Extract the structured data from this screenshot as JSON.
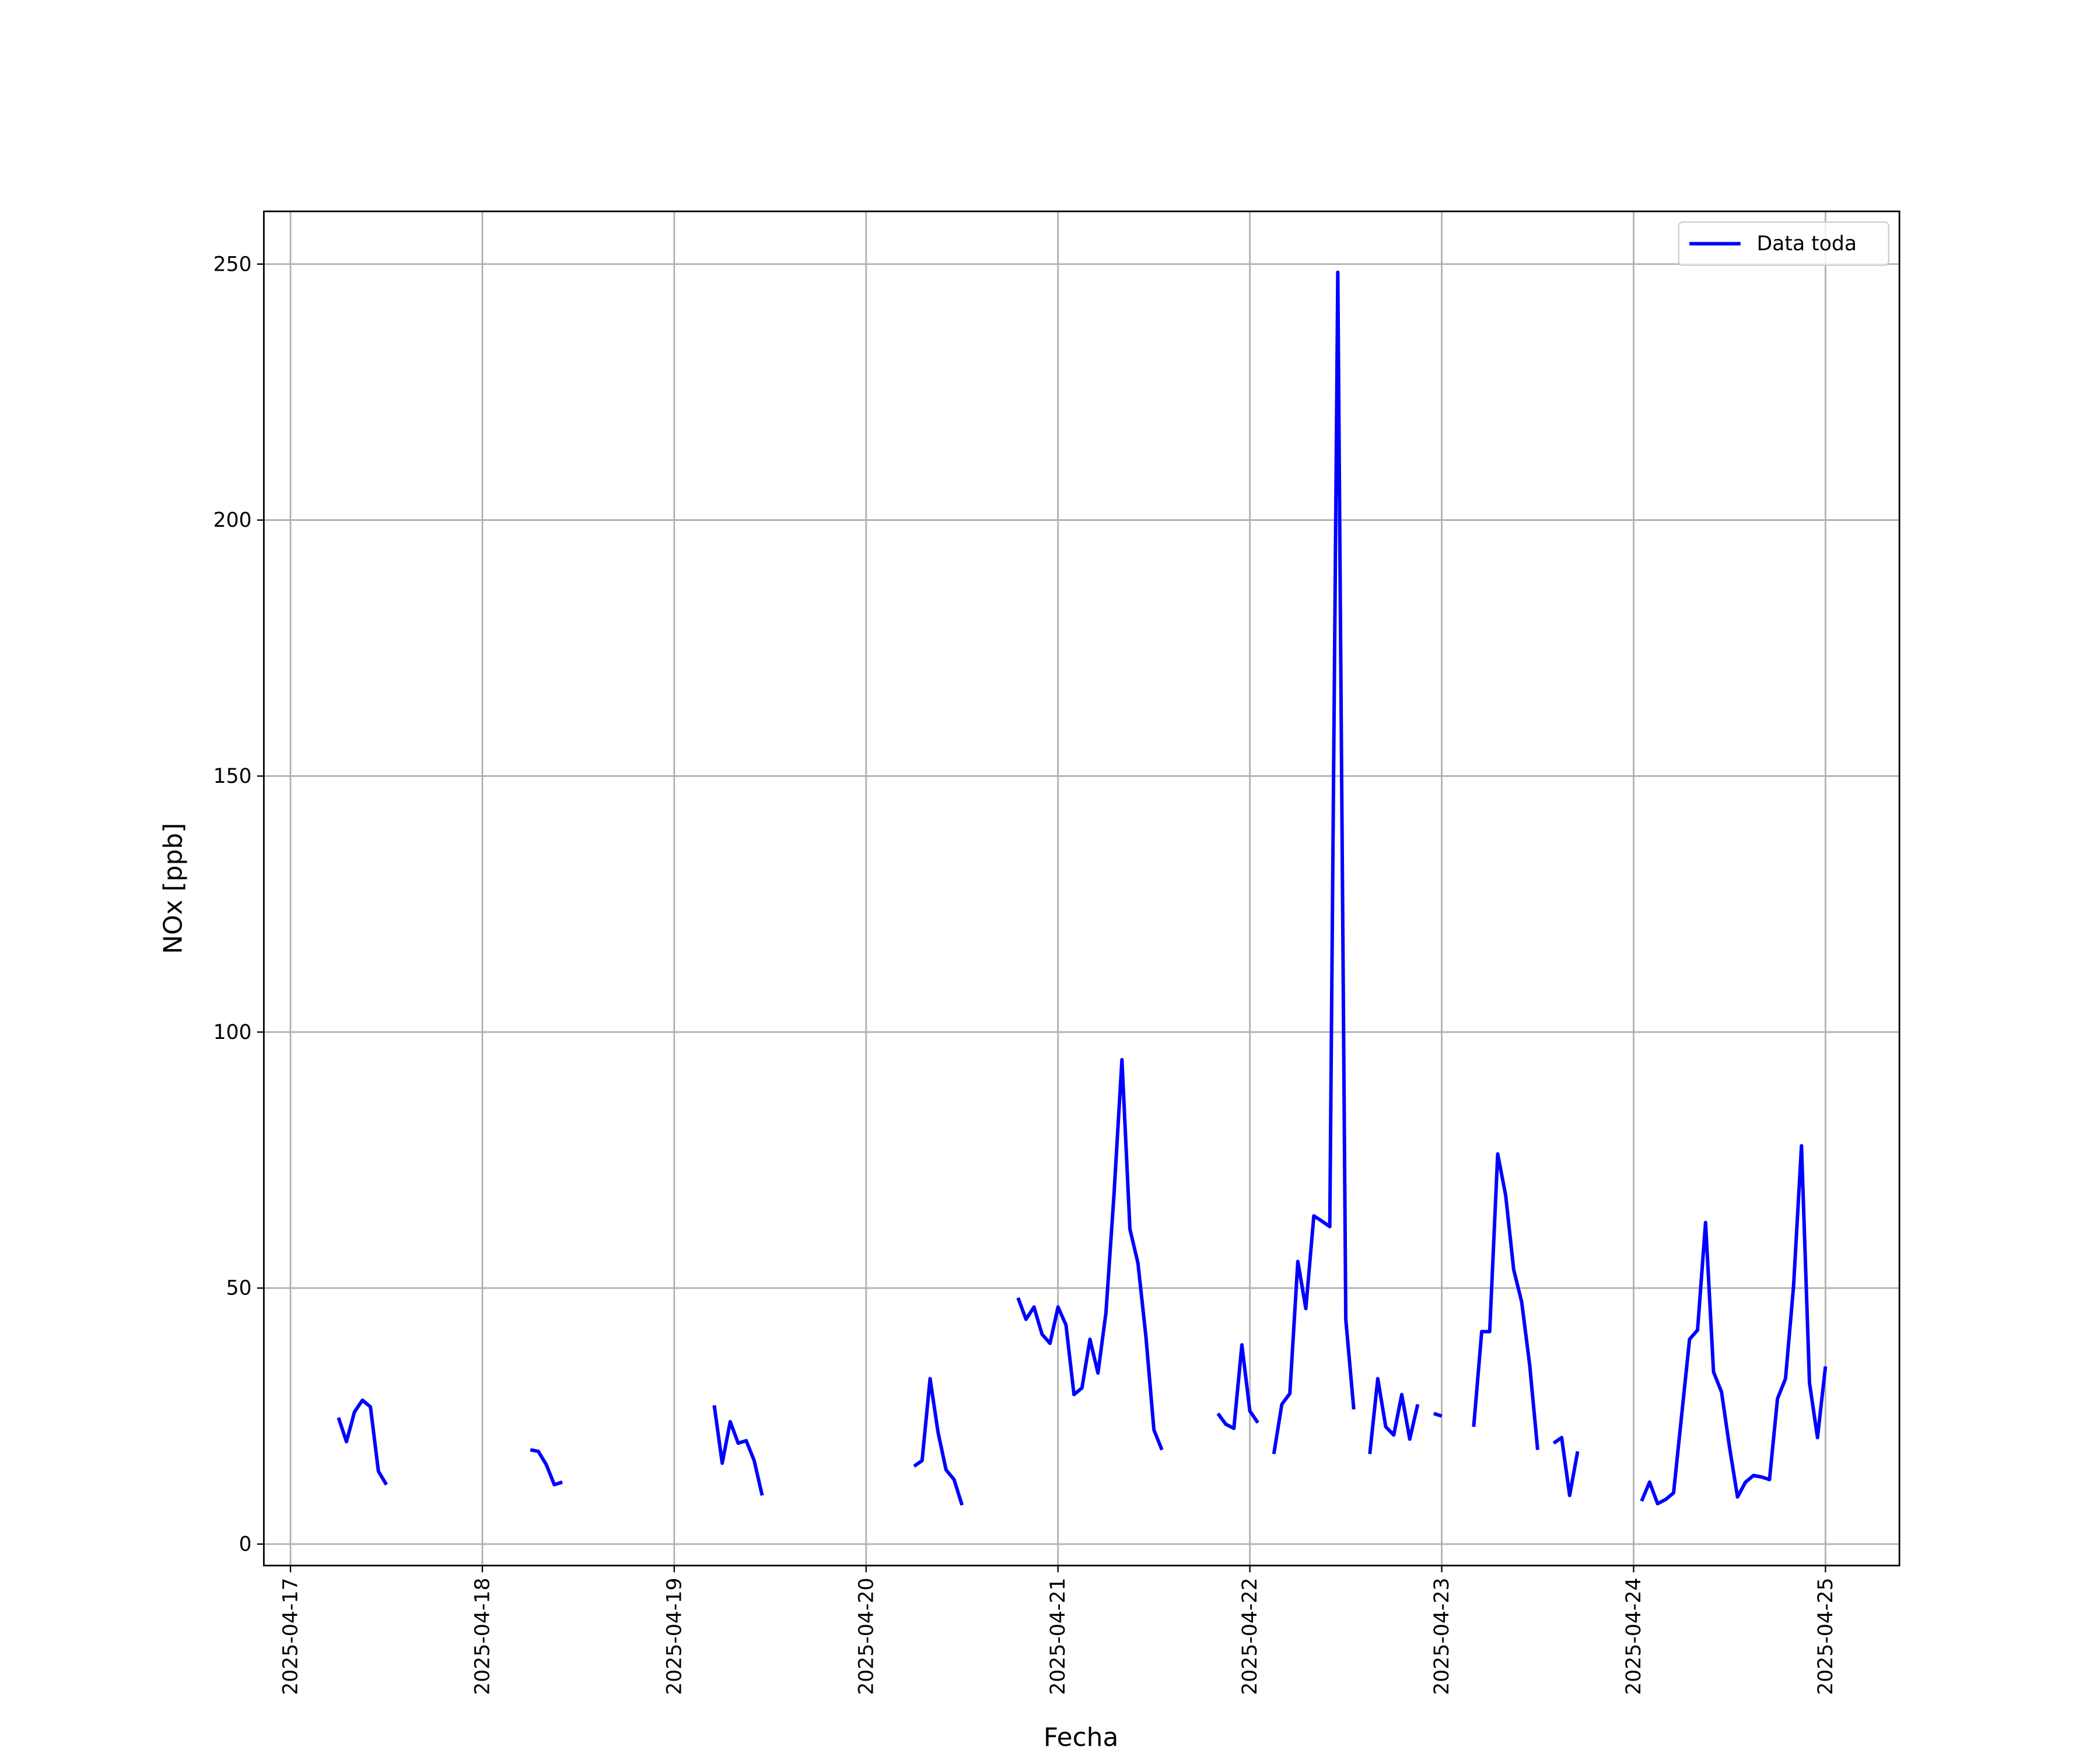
{
  "chart_data": {
    "type": "line",
    "xlabel": "Fecha",
    "ylabel": "NOx [ppb]",
    "x": [
      "2025-04-17 06:00",
      "2025-04-17 07:00",
      "2025-04-17 08:00",
      "2025-04-17 09:00",
      "2025-04-17 10:00",
      "2025-04-17 11:00",
      "2025-04-17 12:00",
      "2025-04-17 13:00",
      "2025-04-18 06:00",
      "2025-04-18 07:00",
      "2025-04-18 08:00",
      "2025-04-18 09:00",
      "2025-04-18 10:00",
      "2025-04-18 11:00",
      "2025-04-19 05:00",
      "2025-04-19 06:00",
      "2025-04-19 07:00",
      "2025-04-19 08:00",
      "2025-04-19 09:00",
      "2025-04-19 10:00",
      "2025-04-19 11:00",
      "2025-04-19 12:00",
      "2025-04-20 06:00",
      "2025-04-20 07:00",
      "2025-04-20 08:00",
      "2025-04-20 09:00",
      "2025-04-20 10:00",
      "2025-04-20 11:00",
      "2025-04-20 12:00",
      "2025-04-20 13:00",
      "2025-04-20 19:00",
      "2025-04-20 20:00",
      "2025-04-20 21:00",
      "2025-04-20 22:00",
      "2025-04-20 23:00",
      "2025-04-21 00:00",
      "2025-04-21 01:00",
      "2025-04-21 02:00",
      "2025-04-21 03:00",
      "2025-04-21 04:00",
      "2025-04-21 05:00",
      "2025-04-21 06:00",
      "2025-04-21 07:00",
      "2025-04-21 08:00",
      "2025-04-21 09:00",
      "2025-04-21 10:00",
      "2025-04-21 11:00",
      "2025-04-21 12:00",
      "2025-04-21 13:00",
      "2025-04-21 14:00",
      "2025-04-21 20:00",
      "2025-04-21 21:00",
      "2025-04-21 22:00",
      "2025-04-21 23:00",
      "2025-04-22 00:00",
      "2025-04-22 01:00",
      "2025-04-22 02:00",
      "2025-04-22 03:00",
      "2025-04-22 04:00",
      "2025-04-22 05:00",
      "2025-04-22 06:00",
      "2025-04-22 07:00",
      "2025-04-22 08:00",
      "2025-04-22 09:00",
      "2025-04-22 10:00",
      "2025-04-22 11:00",
      "2025-04-22 12:00",
      "2025-04-22 13:00",
      "2025-04-22 14:00",
      "2025-04-22 15:00",
      "2025-04-22 16:00",
      "2025-04-22 17:00",
      "2025-04-22 18:00",
      "2025-04-22 19:00",
      "2025-04-22 20:00",
      "2025-04-22 21:00",
      "2025-04-22 22:00",
      "2025-04-22 23:00",
      "2025-04-23 00:00",
      "2025-04-23 01:00",
      "2025-04-23 04:00",
      "2025-04-23 05:00",
      "2025-04-23 06:00",
      "2025-04-23 07:00",
      "2025-04-23 08:00",
      "2025-04-23 09:00",
      "2025-04-23 10:00",
      "2025-04-23 11:00",
      "2025-04-23 12:00",
      "2025-04-23 13:00",
      "2025-04-23 14:00",
      "2025-04-23 15:00",
      "2025-04-23 16:00",
      "2025-04-23 17:00",
      "2025-04-23 18:00",
      "2025-04-24 01:00",
      "2025-04-24 02:00",
      "2025-04-24 03:00",
      "2025-04-24 04:00",
      "2025-04-24 05:00",
      "2025-04-24 06:00",
      "2025-04-24 07:00",
      "2025-04-24 08:00",
      "2025-04-24 09:00",
      "2025-04-24 10:00",
      "2025-04-24 11:00",
      "2025-04-24 12:00",
      "2025-04-24 13:00",
      "2025-04-24 14:00",
      "2025-04-24 15:00",
      "2025-04-24 16:00",
      "2025-04-24 17:00",
      "2025-04-24 18:00",
      "2025-04-24 19:00",
      "2025-04-24 20:00",
      "2025-04-24 21:00",
      "2025-04-24 22:00",
      "2025-04-24 23:00",
      "2025-04-25 00:00"
    ],
    "series": [
      {
        "name": "Data toda",
        "color": "#0000ff",
        "values": [
          24.7,
          20,
          25.8,
          28.1,
          26.8,
          14.2,
          11.6,
          null,
          18.4,
          18.1,
          15.5,
          11.6,
          12.1,
          null,
          27.1,
          15.8,
          23.9,
          19.7,
          20.2,
          16.3,
          9.5,
          null,
          15.2,
          16.3,
          32.3,
          21.8,
          14.5,
          12.6,
          7.6,
          null,
          48.1,
          43.9,
          46.3,
          41,
          39.2,
          46.3,
          42.8,
          29.2,
          30.5,
          40,
          33.4,
          45.2,
          68.1,
          94.6,
          61.5,
          54.9,
          40.5,
          22.3,
          18.4,
          null,
          25.5,
          23.4,
          22.6,
          38.9,
          26,
          23.7,
          null,
          17.6,
          27.3,
          29.4,
          55.2,
          46,
          64.1,
          63.1,
          62,
          248.4,
          43.9,
          26.3,
          null,
          17.6,
          32.3,
          22.9,
          21.3,
          29.2,
          20.5,
          27.3,
          null,
          25.5,
          25,
          null,
          22.9,
          41.5,
          41.5,
          76.2,
          68.1,
          53.6,
          47.3,
          35,
          18.4,
          null,
          19.7,
          20.8,
          9.5,
          18.1,
          null,
          8.4,
          12.1,
          7.9,
          8.7,
          10,
          25,
          40,
          41.8,
          62.8,
          33.6,
          29.7,
          18.9,
          9.2,
          12.1,
          13.4,
          13.1,
          12.6,
          28.4,
          32.3,
          50.2,
          77.8,
          31.5,
          20.8,
          34.7
        ]
      }
    ],
    "xlim": [
      "2025-04-16 20:40",
      "2025-04-25 09:15"
    ],
    "xticks": [
      "2025-04-17",
      "2025-04-18",
      "2025-04-19",
      "2025-04-20",
      "2025-04-21",
      "2025-04-22",
      "2025-04-23",
      "2025-04-24",
      "2025-04-25"
    ],
    "ylim": [
      -4.2,
      260.3
    ],
    "yticks": [
      0,
      50,
      100,
      150,
      200,
      250
    ],
    "grid": true,
    "legend": "upper right"
  }
}
